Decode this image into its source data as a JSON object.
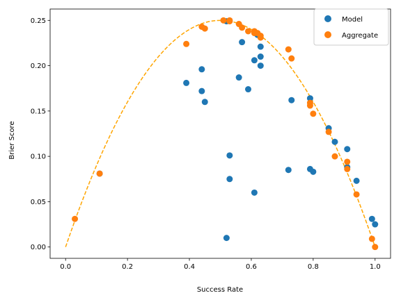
{
  "chart_data": {
    "type": "scatter",
    "title": "",
    "xlabel": "Success Rate",
    "ylabel": "Brier Score",
    "xlim": [
      -0.05,
      1.05
    ],
    "ylim": [
      -0.0125,
      0.2625
    ],
    "xticks": [
      0.0,
      0.2,
      0.4,
      0.6,
      0.8,
      1.0
    ],
    "xtick_labels": [
      "0.0",
      "0.2",
      "0.4",
      "0.6",
      "0.8",
      "1.0"
    ],
    "yticks": [
      0.0,
      0.05,
      0.1,
      0.15,
      0.2,
      0.25
    ],
    "ytick_labels": [
      "0.00",
      "0.05",
      "0.10",
      "0.15",
      "0.20",
      "0.25"
    ],
    "grid": false,
    "legend_position": "top-right",
    "series": [
      {
        "name": "Model",
        "color": "#1f77b4",
        "points": [
          [
            0.11,
            0.081
          ],
          [
            0.39,
            0.181
          ],
          [
            0.44,
            0.196
          ],
          [
            0.44,
            0.172
          ],
          [
            0.45,
            0.16
          ],
          [
            0.52,
            0.01
          ],
          [
            0.52,
            0.249
          ],
          [
            0.53,
            0.101
          ],
          [
            0.53,
            0.075
          ],
          [
            0.56,
            0.187
          ],
          [
            0.57,
            0.226
          ],
          [
            0.59,
            0.174
          ],
          [
            0.61,
            0.206
          ],
          [
            0.61,
            0.06
          ],
          [
            0.62,
            0.234
          ],
          [
            0.63,
            0.221
          ],
          [
            0.63,
            0.21
          ],
          [
            0.63,
            0.2
          ],
          [
            0.72,
            0.085
          ],
          [
            0.73,
            0.162
          ],
          [
            0.79,
            0.164
          ],
          [
            0.79,
            0.086
          ],
          [
            0.8,
            0.083
          ],
          [
            0.85,
            0.131
          ],
          [
            0.87,
            0.116
          ],
          [
            0.91,
            0.108
          ],
          [
            0.91,
            0.088
          ],
          [
            0.94,
            0.073
          ],
          [
            0.99,
            0.031
          ],
          [
            1.0,
            0.025
          ]
        ]
      },
      {
        "name": "Aggregate",
        "color": "#ff7f0e",
        "points": [
          [
            0.03,
            0.031
          ],
          [
            0.11,
            0.081
          ],
          [
            0.39,
            0.224
          ],
          [
            0.44,
            0.243
          ],
          [
            0.45,
            0.241
          ],
          [
            0.51,
            0.25
          ],
          [
            0.53,
            0.25
          ],
          [
            0.53,
            0.249
          ],
          [
            0.56,
            0.246
          ],
          [
            0.57,
            0.242
          ],
          [
            0.59,
            0.238
          ],
          [
            0.61,
            0.238
          ],
          [
            0.61,
            0.236
          ],
          [
            0.62,
            0.236
          ],
          [
            0.63,
            0.233
          ],
          [
            0.63,
            0.231
          ],
          [
            0.72,
            0.218
          ],
          [
            0.73,
            0.208
          ],
          [
            0.79,
            0.159
          ],
          [
            0.79,
            0.156
          ],
          [
            0.8,
            0.147
          ],
          [
            0.85,
            0.127
          ],
          [
            0.87,
            0.1
          ],
          [
            0.91,
            0.094
          ],
          [
            0.91,
            0.086
          ],
          [
            0.94,
            0.058
          ],
          [
            0.99,
            0.009
          ],
          [
            1.0,
            0.0
          ]
        ]
      }
    ],
    "curve": {
      "style": "dashed",
      "color": "#ffa500",
      "function": "x*(1-x)",
      "x_range": [
        0.0,
        1.0
      ]
    }
  }
}
